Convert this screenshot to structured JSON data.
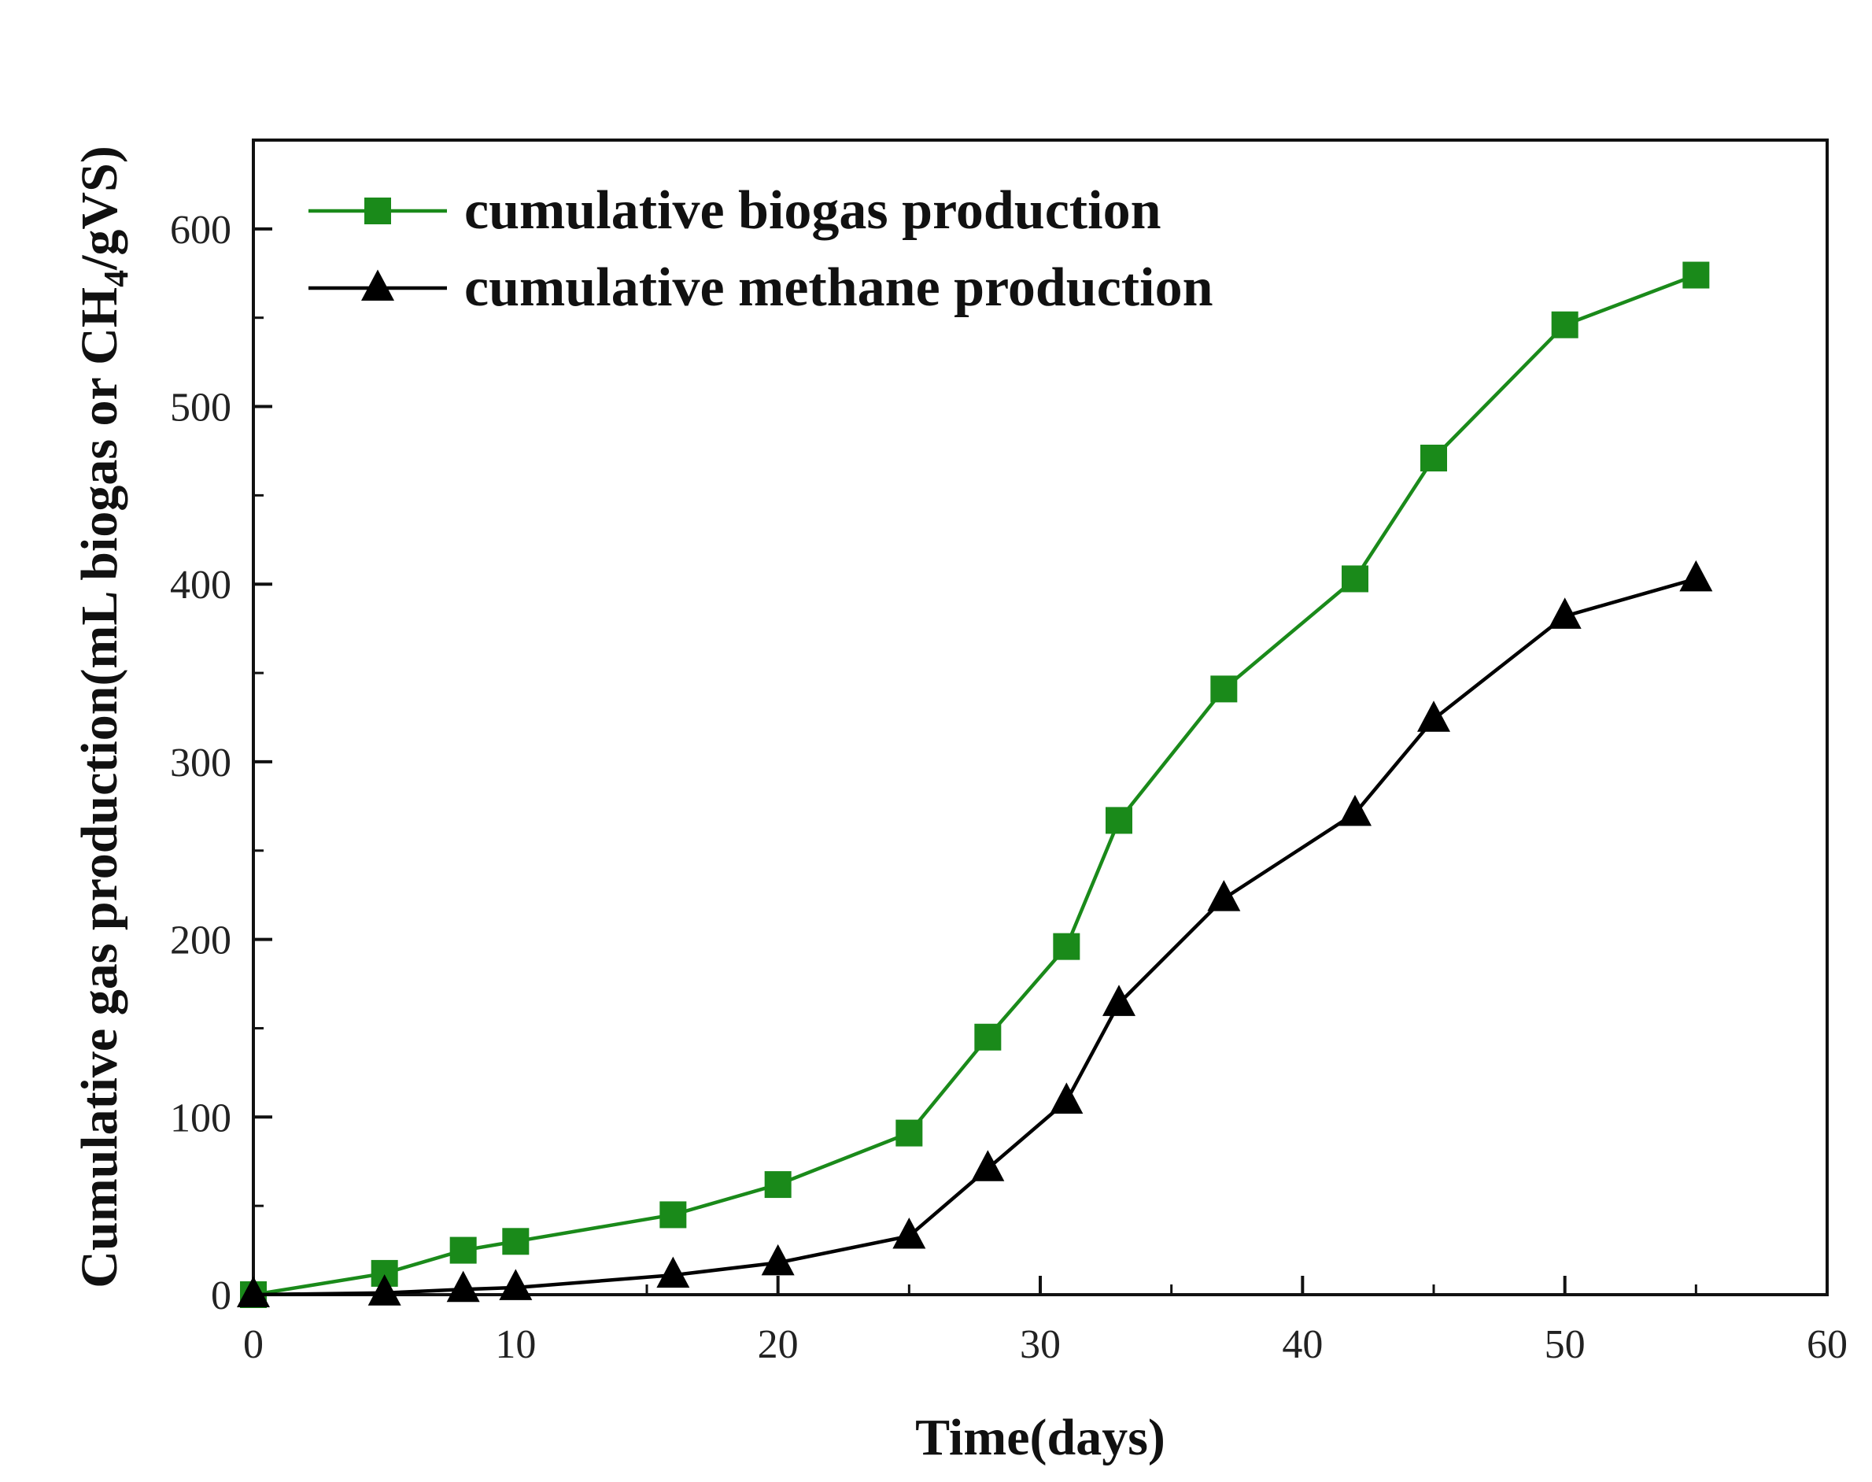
{
  "chart_data": {
    "type": "line",
    "title": "",
    "xlabel": "Time(days)",
    "ylabel_parts": [
      "Cumulative gas production(mL biogas or CH",
      "4",
      "/gVS)"
    ],
    "xlim": [
      0,
      60
    ],
    "ylim": [
      0,
      650
    ],
    "xticks": [
      0,
      10,
      20,
      30,
      40,
      50,
      60
    ],
    "yticks": [
      0,
      100,
      200,
      300,
      400,
      500,
      600
    ],
    "grid": false,
    "legend_position": "top-left",
    "series": [
      {
        "name": "cumulative biogas production",
        "marker": "square",
        "color": "#1a8a1a",
        "x": [
          0,
          5,
          8,
          10,
          16,
          20,
          25,
          28,
          31,
          33,
          37,
          42,
          45,
          50,
          55
        ],
        "y": [
          0,
          12,
          25,
          30,
          45,
          62,
          91,
          145,
          196,
          267,
          341,
          403,
          471,
          546,
          574
        ]
      },
      {
        "name": "cumulative methane production",
        "marker": "triangle",
        "color": "#000000",
        "x": [
          0,
          5,
          8,
          10,
          16,
          20,
          25,
          28,
          31,
          33,
          37,
          42,
          45,
          50,
          55
        ],
        "y": [
          0,
          1,
          3,
          4,
          11,
          18,
          33,
          71,
          109,
          164,
          223,
          271,
          324,
          382,
          403
        ]
      }
    ]
  }
}
